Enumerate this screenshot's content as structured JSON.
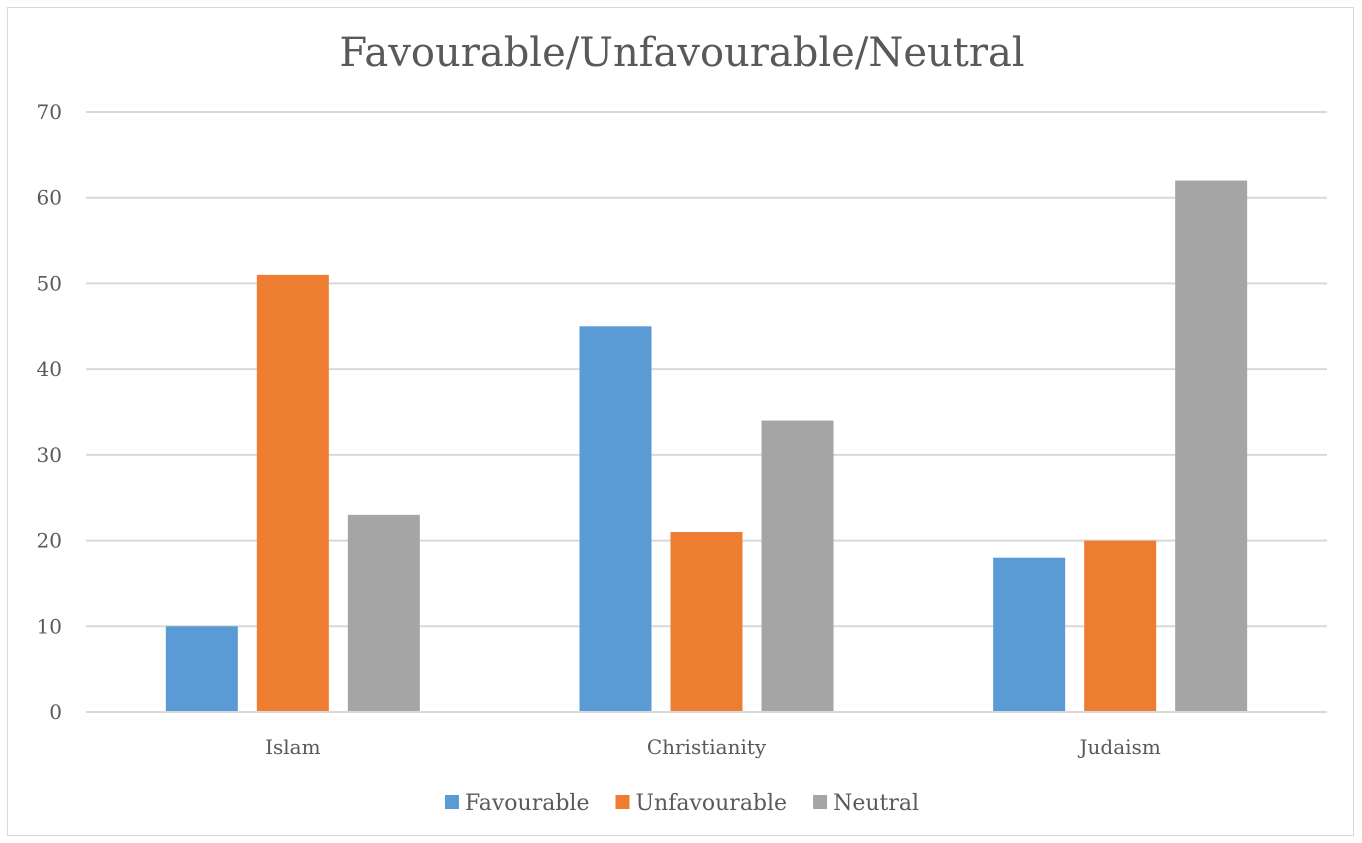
{
  "chart_data": {
    "type": "bar",
    "title": "Favourable/Unfavourable/Neutral",
    "xlabel": "",
    "ylabel": "",
    "categories": [
      "Islam",
      "Christianity",
      "Judaism"
    ],
    "series": [
      {
        "name": "Favourable",
        "color": "#5b9bd5",
        "values": [
          10,
          45,
          18
        ]
      },
      {
        "name": "Unfavourable",
        "color": "#ed7d31",
        "values": [
          51,
          21,
          20
        ]
      },
      {
        "name": "Neutral",
        "color": "#a5a5a5",
        "values": [
          23,
          34,
          62
        ]
      }
    ],
    "ylim": [
      0,
      70
    ],
    "yticks": [
      "0",
      "10",
      "20",
      "30",
      "40",
      "50",
      "60",
      "70"
    ],
    "grid": true,
    "legend_position": "bottom"
  }
}
